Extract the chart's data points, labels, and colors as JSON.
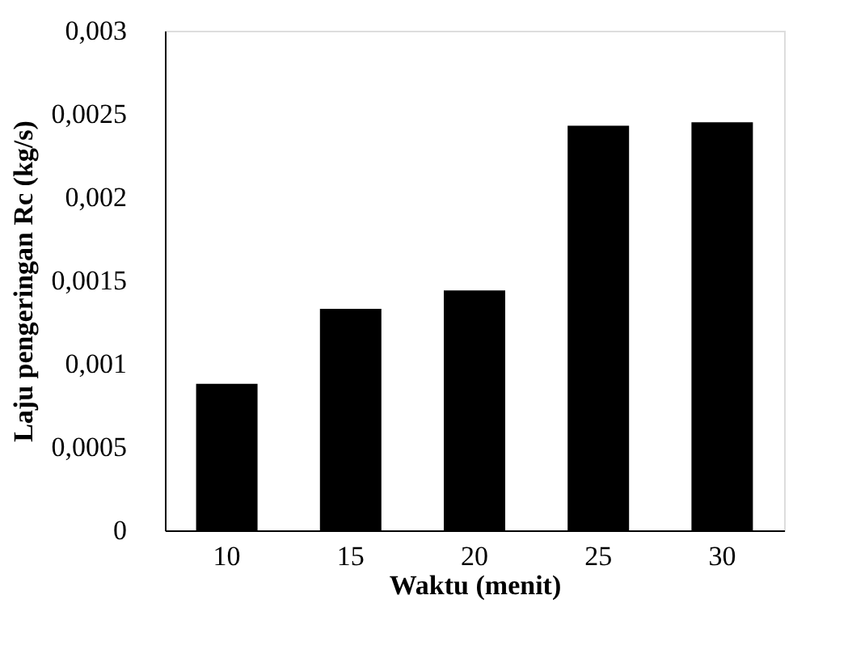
{
  "chart_data": {
    "type": "bar",
    "xlabel": "Waktu (menit)",
    "ylabel": "Laju pengeringan Rc (kg/s)",
    "categories": [
      "10",
      "15",
      "20",
      "25",
      "30"
    ],
    "values": [
      0.00088,
      0.00133,
      0.00144,
      0.00243,
      0.00245
    ],
    "color": "#000000",
    "ylim": [
      0,
      0.003
    ],
    "yticks": [
      0,
      {
        "value": 0.0005,
        "label": "0,0005"
      },
      {
        "value": 0.001,
        "label": "0,001"
      },
      {
        "value": 0.0015,
        "label": "0,0015"
      },
      {
        "value": 0.002,
        "label": "0,002"
      },
      {
        "value": 0.0025,
        "label": "0,0025"
      },
      {
        "value": 0.003,
        "label": "0,003"
      }
    ],
    "grid": false
  }
}
